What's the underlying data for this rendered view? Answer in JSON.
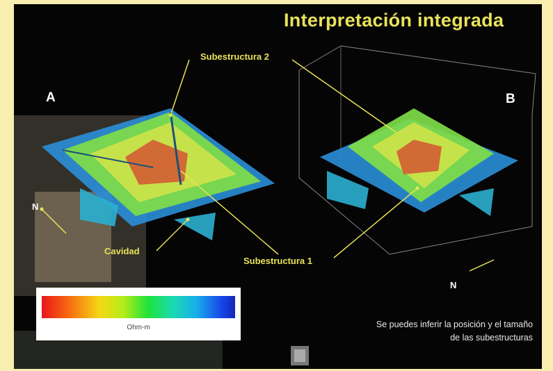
{
  "slide": {
    "title": "Interpretación integrada",
    "panel_a_label": "A",
    "panel_b_label": "B",
    "north_a": "N",
    "north_b": "N",
    "labels": {
      "substructure_2": "Subestructura 2",
      "substructure_1": "Subestructura 1",
      "cavity": "Cavidad"
    },
    "legend": {
      "unit": "Ohm-m",
      "ticks": [
        "",
        "",
        "",
        "",
        ""
      ]
    },
    "caption_line_1": "Se puedes inferir la posición y el tamaño",
    "caption_line_2": "de las subestructuras"
  },
  "colors": {
    "background": "#050505",
    "frame": "#f8eeb0",
    "title": "#e8e35a",
    "leader": "#e8e35a",
    "pyramid_outer": "#8fe24a",
    "pyramid_inner": "#d8d84a",
    "pyramid_core": "#d9703a",
    "base_slab": "#2d8fd8"
  }
}
